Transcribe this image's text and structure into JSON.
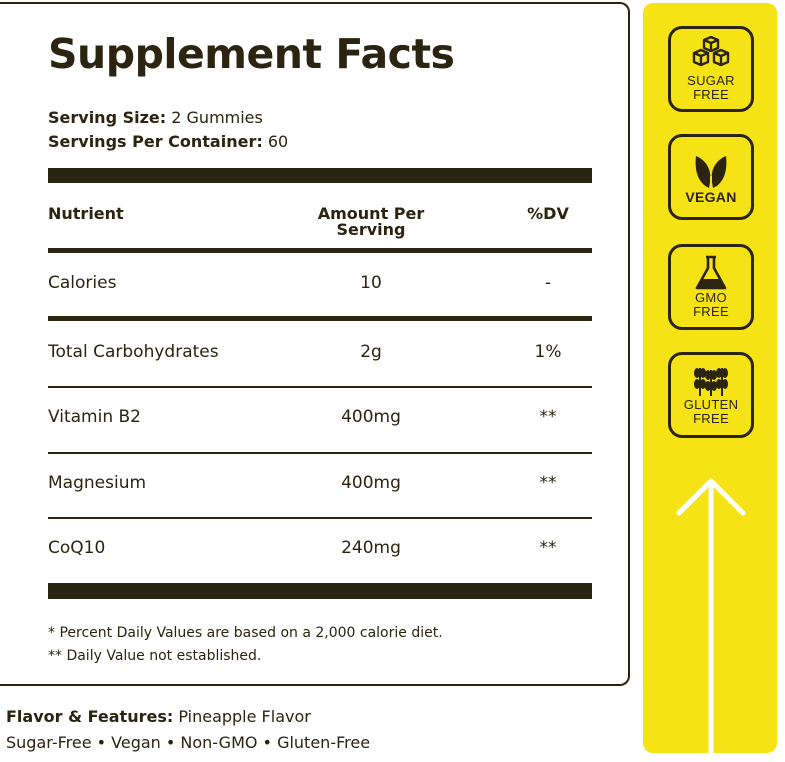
{
  "title": "Supplement Facts",
  "serving": {
    "size_label": "Serving Size:",
    "size_value": " 2 Gummies",
    "per_container_label": "Servings Per Container:",
    "per_container_value": " 60"
  },
  "table": {
    "headers": [
      "Nutrient",
      "Amount Per Serving",
      "%DV"
    ],
    "rows": [
      {
        "nutrient": "Calories",
        "amount": "10",
        "dv": "-"
      },
      {
        "nutrient": "Total Carbohydrates",
        "amount": "2g",
        "dv": "1%"
      },
      {
        "nutrient": "Vitamin B2",
        "amount": "400mg",
        "dv": "**"
      },
      {
        "nutrient": "Magnesium",
        "amount": "400mg",
        "dv": "**"
      },
      {
        "nutrient": "CoQ10",
        "amount": "240mg",
        "dv": "**"
      }
    ]
  },
  "footnotes": [
    "* Percent Daily Values are based on a 2,000 calorie diet.",
    "** Daily Value not established."
  ],
  "flavor": {
    "label": "Flavor & Features:",
    "value": " Pineapple Flavor",
    "features": "Sugar-Free • Vegan • Non-GMO • Gluten-Free"
  },
  "badges": [
    {
      "icon": "sugar-cubes-icon",
      "line1": "SUGAR",
      "line2": "FREE"
    },
    {
      "icon": "leaf-icon",
      "line1": "VEGAN",
      "line2": ""
    },
    {
      "icon": "flask-icon",
      "line1": "GMO",
      "line2": "FREE"
    },
    {
      "icon": "wheat-icon",
      "line1": "GLUTEN",
      "line2": "FREE"
    }
  ],
  "colors": {
    "text": "#2a2410",
    "accent_yellow": "#f6e315",
    "background": "#ffffff"
  }
}
